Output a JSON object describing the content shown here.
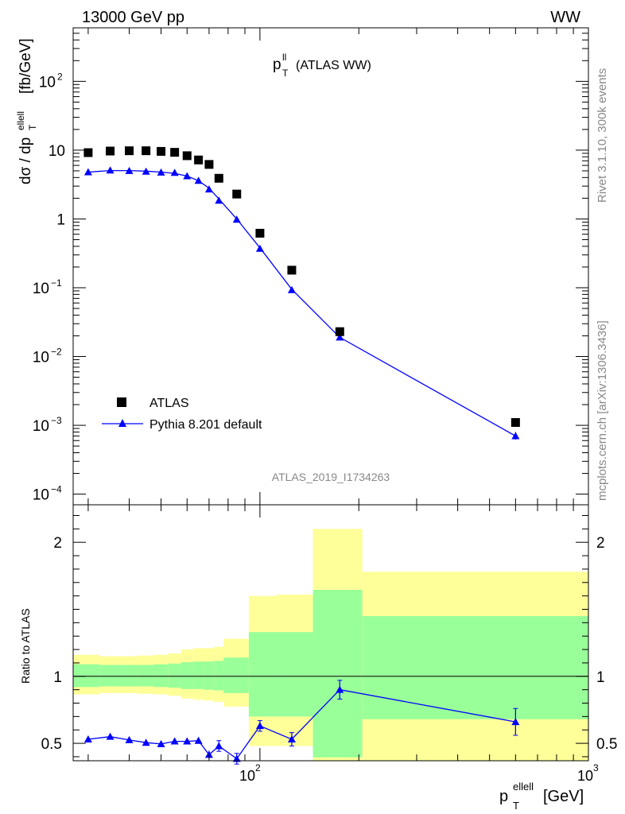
{
  "header": {
    "left": "13000 GeV pp",
    "right": "WW"
  },
  "side_labels": {
    "rivet": "Rivet 3.1.10,  300k events",
    "mcplots": "mcplots.cern.ch [arXiv:1306.3436]"
  },
  "analysis_id": "ATLAS_2019_I1734263",
  "plot_title": {
    "main": "p",
    "sup": "ll",
    "sub": "T",
    "rest": "(ATLAS WW)"
  },
  "axes": {
    "ylabel_main": "dσ / dp",
    "ylabel_sup": "ellell",
    "ylabel_sub": "T",
    "ylabel_unit": "[fb/GeV]",
    "ylabel_ratio": "Ratio to ATLAS",
    "xlabel_main": "p",
    "xlabel_sup": "ellell",
    "xlabel_sub": "T",
    "xlabel_unit": "[GeV]",
    "x_tick_labels": [
      "10",
      "2",
      "10",
      "3"
    ],
    "main_tick_labels": [
      {
        "base": "10",
        "exp": "2"
      },
      {
        "base": "10",
        "exp": ""
      },
      {
        "base": "1",
        "exp": ""
      },
      {
        "base": "10",
        "exp": "−1"
      },
      {
        "base": "10",
        "exp": "−2"
      },
      {
        "base": "10",
        "exp": "−3"
      },
      {
        "base": "10",
        "exp": "−4"
      }
    ],
    "ratio_tick_labels": [
      "2",
      "1",
      "0.5"
    ]
  },
  "legend": {
    "data_label": "ATLAS",
    "mc_label": "Pythia 8.201 default"
  },
  "colors": {
    "mc": "#0000ff",
    "data": "#000000",
    "band_inner": "#99ff99",
    "band_outer": "#ffff99"
  },
  "chart_data": {
    "type": "scatter",
    "x_scale": "log",
    "y_scale": "log",
    "xlim": [
      27,
      1000
    ],
    "ylim": [
      7e-05,
      600
    ],
    "ratio_ylim": [
      0.37,
      2.28
    ],
    "series": [
      {
        "name": "ATLAS",
        "x": [
          30,
          35,
          40,
          45,
          50,
          55,
          60,
          65,
          70,
          75,
          85,
          100,
          125,
          175,
          600
        ],
        "y": [
          9.2,
          9.7,
          9.8,
          9.8,
          9.6,
          9.3,
          8.3,
          7.2,
          6.2,
          3.9,
          2.3,
          0.62,
          0.18,
          0.023,
          0.0011
        ]
      },
      {
        "name": "Pythia 8.201 default",
        "x": [
          30,
          35,
          40,
          45,
          50,
          55,
          60,
          65,
          70,
          75,
          85,
          100,
          125,
          175,
          600
        ],
        "y": [
          4.8,
          5.1,
          5.0,
          4.9,
          4.75,
          4.7,
          4.2,
          3.6,
          2.7,
          1.85,
          0.98,
          0.37,
          0.093,
          0.019,
          0.0007
        ],
        "ratio": [
          0.53,
          0.55,
          0.525,
          0.505,
          0.495,
          0.515,
          0.515,
          0.52,
          0.415,
          0.48,
          0.385,
          0.63,
          0.53,
          0.9,
          0.66
        ],
        "ratio_err": [
          0.02,
          0.02,
          0.02,
          0.02,
          0.02,
          0.02,
          0.02,
          0.02,
          0.03,
          0.04,
          0.04,
          0.04,
          0.05,
          0.07,
          0.1
        ]
      }
    ],
    "ratio_bands": [
      {
        "x0": 27,
        "x1": 32.5,
        "inner": [
          0.92,
          1.09
        ],
        "outer": [
          0.865,
          1.16
        ]
      },
      {
        "x0": 32.5,
        "x1": 37.5,
        "inner": [
          0.925,
          1.085
        ],
        "outer": [
          0.875,
          1.15
        ]
      },
      {
        "x0": 37.5,
        "x1": 42.5,
        "inner": [
          0.925,
          1.085
        ],
        "outer": [
          0.875,
          1.15
        ]
      },
      {
        "x0": 42.5,
        "x1": 47.5,
        "inner": [
          0.925,
          1.085
        ],
        "outer": [
          0.87,
          1.155
        ]
      },
      {
        "x0": 47.5,
        "x1": 52.5,
        "inner": [
          0.92,
          1.09
        ],
        "outer": [
          0.865,
          1.16
        ]
      },
      {
        "x0": 52.5,
        "x1": 57.5,
        "inner": [
          0.915,
          1.095
        ],
        "outer": [
          0.855,
          1.17
        ]
      },
      {
        "x0": 57.5,
        "x1": 62.5,
        "inner": [
          0.905,
          1.105
        ],
        "outer": [
          0.835,
          1.2
        ]
      },
      {
        "x0": 62.5,
        "x1": 67.5,
        "inner": [
          0.905,
          1.11
        ],
        "outer": [
          0.825,
          1.21
        ]
      },
      {
        "x0": 67.5,
        "x1": 72.5,
        "inner": [
          0.9,
          1.11
        ],
        "outer": [
          0.82,
          1.21
        ]
      },
      {
        "x0": 72.5,
        "x1": 77.5,
        "inner": [
          0.895,
          1.115
        ],
        "outer": [
          0.81,
          1.22
        ]
      },
      {
        "x0": 77.5,
        "x1": 92.5,
        "inner": [
          0.875,
          1.14
        ],
        "outer": [
          0.775,
          1.28
        ]
      },
      {
        "x0": 92.5,
        "x1": 112.5,
        "inner": [
          0.7,
          1.33
        ],
        "outer": [
          0.48,
          1.6
        ]
      },
      {
        "x0": 112.5,
        "x1": 145,
        "inner": [
          0.7,
          1.33
        ],
        "outer": [
          0.48,
          1.61
        ]
      },
      {
        "x0": 145,
        "x1": 205,
        "inner": [
          0.395,
          1.645
        ],
        "outer": [
          0.35,
          2.1
        ]
      },
      {
        "x0": 205,
        "x1": 1000,
        "inner": [
          0.68,
          1.45
        ],
        "outer": [
          0.35,
          1.78
        ]
      }
    ],
    "mc_curve": {
      "x": [
        30,
        35,
        40,
        45,
        50,
        55,
        60,
        65,
        70,
        75,
        85,
        100,
        125,
        175,
        600
      ],
      "y": [
        4.8,
        5.05,
        5.05,
        4.95,
        4.8,
        4.6,
        4.2,
        3.6,
        2.8,
        1.95,
        1.0,
        0.38,
        0.095,
        0.019,
        0.0007
      ]
    }
  }
}
